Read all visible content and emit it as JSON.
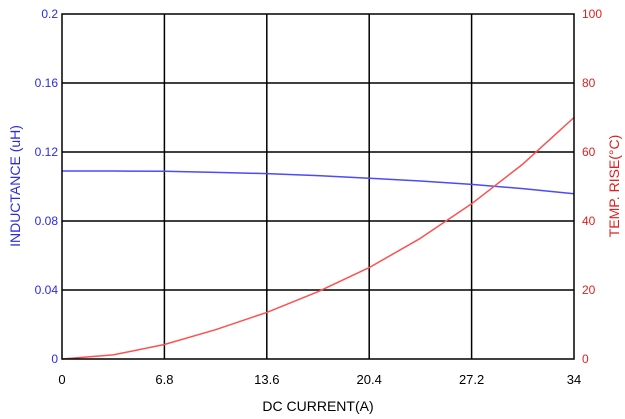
{
  "chart_data": {
    "type": "line",
    "xlabel": "DC CURRENT(A)",
    "ylabel_left": "INDUCTANCE (uH)",
    "ylabel_right": "TEMP. RISE(°C)",
    "xlim": [
      0,
      34
    ],
    "ylim_left": [
      0,
      0.2
    ],
    "ylim_right": [
      0,
      100
    ],
    "x_ticks": [
      "0",
      "6.8",
      "13.6",
      "20.4",
      "27.2",
      "34"
    ],
    "y_ticks_left": [
      "0",
      "0.04",
      "0.08",
      "0.12",
      "0.16",
      "0.2"
    ],
    "y_ticks_right": [
      "0",
      "20",
      "40",
      "60",
      "80",
      "100"
    ],
    "grid": true,
    "colors": {
      "inductance": "#4a4aff",
      "temp_rise": "#ff5050",
      "left_axis": "#2a2ae6",
      "right_axis": "#e02020",
      "grid": "#000000"
    },
    "series": [
      {
        "axis": "left",
        "x": [
          0,
          3.4,
          6.8,
          10.2,
          13.6,
          17,
          20.4,
          23.8,
          27.2,
          30.6,
          34
        ],
        "values": [
          0.109,
          0.109,
          0.1088,
          0.1082,
          0.1075,
          0.1063,
          0.1048,
          0.1032,
          0.1012,
          0.0988,
          0.0958
        ]
      },
      {
        "axis": "right",
        "x": [
          0,
          3.4,
          6.8,
          10.2,
          13.6,
          17,
          20.4,
          23.8,
          27.2,
          30.6,
          34
        ],
        "values": [
          0,
          1.2,
          4.2,
          8.5,
          13.5,
          19.5,
          26.5,
          35,
          45,
          56.5,
          70
        ]
      }
    ]
  }
}
